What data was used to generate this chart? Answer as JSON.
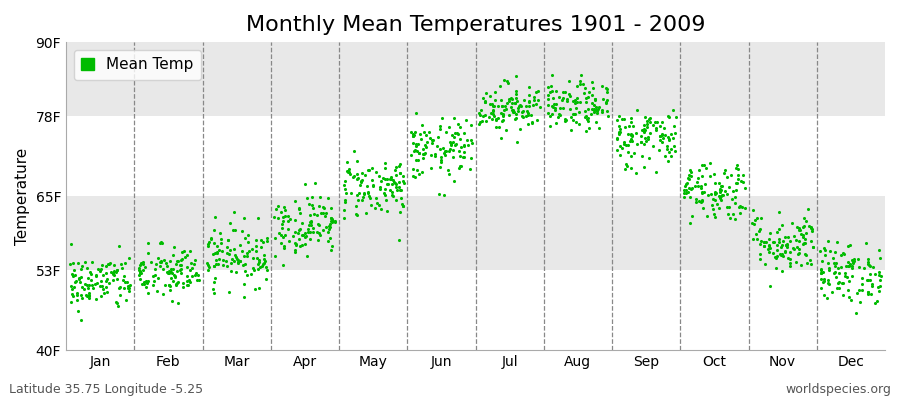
{
  "title": "Monthly Mean Temperatures 1901 - 2009",
  "ylabel": "Temperature",
  "ytick_labels": [
    "40F",
    "53F",
    "65F",
    "78F",
    "90F"
  ],
  "ytick_values": [
    40,
    53,
    65,
    78,
    90
  ],
  "ylim": [
    40,
    90
  ],
  "months": [
    "Jan",
    "Feb",
    "Mar",
    "Apr",
    "May",
    "Jun",
    "Jul",
    "Aug",
    "Sep",
    "Oct",
    "Nov",
    "Dec"
  ],
  "mean_temps_F": [
    51.0,
    52.5,
    55.5,
    60.5,
    66.5,
    72.5,
    79.5,
    79.5,
    74.5,
    66.0,
    57.5,
    52.5
  ],
  "std_temps_F": [
    2.3,
    2.3,
    2.5,
    2.5,
    2.5,
    2.5,
    2.0,
    2.0,
    2.5,
    2.5,
    2.5,
    2.5
  ],
  "n_years": 109,
  "dot_color": "#00bb00",
  "dot_size": 5,
  "plot_bg_light": "#f0f0f0",
  "plot_bg_dark": "#e0e0e0",
  "fig_bg_color": "#ffffff",
  "legend_label": "Mean Temp",
  "bottom_left": "Latitude 35.75 Longitude -5.25",
  "bottom_right": "worldspecies.org",
  "title_fontsize": 16,
  "axis_label_fontsize": 11,
  "tick_fontsize": 10,
  "annotation_fontsize": 9,
  "dashed_color": "#888888",
  "band_colors": [
    "#ffffff",
    "#e8e8e8"
  ]
}
